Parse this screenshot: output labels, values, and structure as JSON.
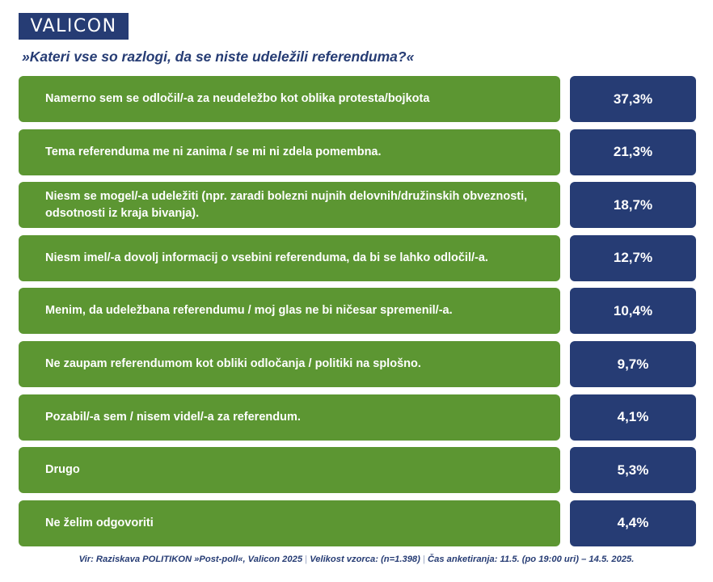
{
  "header": {
    "logo_text": "VALICON",
    "question": "»Kateri vse so razlogi, da se niste udeležili referenduma?«"
  },
  "chart_data": {
    "type": "bar",
    "categories": [
      "Namerno sem se odločil/-a za neudeležbo kot oblika protesta/bojkota",
      "Tema referenduma me ni zanima / se mi ni zdela pomembna.",
      "Niesm se mogel/-a udeležiti (npr. zaradi bolezni nujnih delovnih/družinskih obveznosti, odsotnosti iz kraja bivanja).",
      "Niesm imel/-a dovolj informacij o vsebini referenduma, da bi se lahko odločil/-a.",
      "Menim, da udeležbana referendumu / moj glas ne bi ničesar spremenil/-a.",
      "Ne zaupam referendumom kot obliki odločanja / politiki na splošno.",
      "Pozabil/-a sem / nisem videl/-a za referendum.",
      "Drugo",
      "Ne želim odgovoriti"
    ],
    "values": [
      37.3,
      21.3,
      18.7,
      12.7,
      10.4,
      9.7,
      4.1,
      5.3,
      4.4
    ],
    "value_labels": [
      "37,3%",
      "21,3%",
      "18,7%",
      "12,7%",
      "10,4%",
      "9,7%",
      "4,1%",
      "5,3%",
      "4,4%"
    ],
    "title": "»Kateri vse so razlogi, da se niste udeležili referenduma?«",
    "colors": {
      "label_box": "#5c9632",
      "value_box": "#263c74"
    }
  },
  "footer": {
    "source": "Vir: Raziskava POLITIKON »Post-poll«, Valicon 2025",
    "sample": "Velikost vzorca: (n=1.398)",
    "period": "Čas anketiranja: 11.5. (po 19:00 uri) – 14.5. 2025.",
    "separator": "|"
  }
}
